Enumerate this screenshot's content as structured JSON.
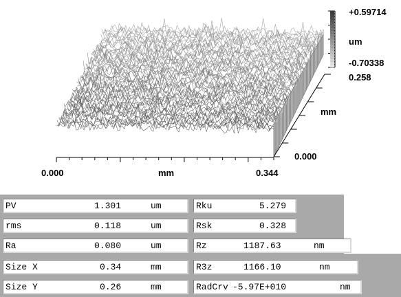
{
  "plot": {
    "z_max_label": "+0.59714",
    "z_unit_label": "um",
    "z_min_label": "-0.70338",
    "y_max_label": "0.258",
    "y_unit_label": "mm",
    "y_min_label": "0.000",
    "x_min_label": "0.000",
    "x_unit_label": "mm",
    "x_max_label": "0.344"
  },
  "stats_left": [
    {
      "name": "PV",
      "value": "1.301",
      "unit": "um"
    },
    {
      "name": "rms",
      "value": "0.118",
      "unit": "um"
    },
    {
      "name": "Ra",
      "value": "0.080",
      "unit": "um"
    },
    {
      "name": "Size X",
      "value": "0.34",
      "unit": "mm"
    },
    {
      "name": "Size Y",
      "value": "0.26",
      "unit": "mm"
    }
  ],
  "stats_right": [
    {
      "name": "Rku",
      "value": "5.279",
      "unit": ""
    },
    {
      "name": "Rsk",
      "value": "0.328",
      "unit": ""
    },
    {
      "name": "Rz",
      "value": "1187.63",
      "unit": "nm"
    },
    {
      "name": "R3z",
      "value": "1166.10",
      "unit": "nm"
    },
    {
      "name": "RadCrv",
      "value": "-5.97E+010",
      "unit": "nm"
    }
  ]
}
